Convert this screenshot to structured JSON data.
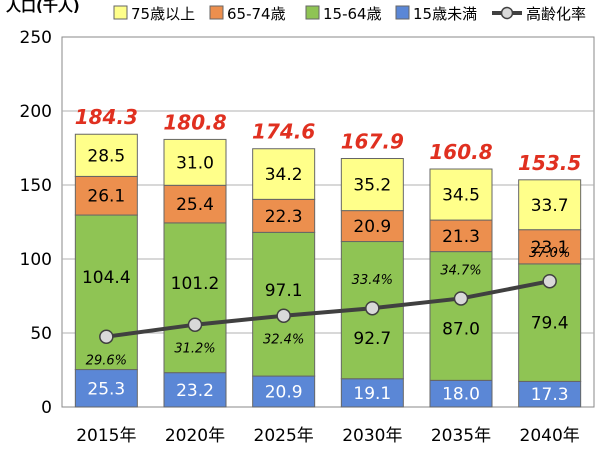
{
  "chart_data": {
    "type": "bar",
    "stacked": true,
    "ylabel": "人口(千人)",
    "ylim": [
      0,
      250
    ],
    "yticks": [
      0,
      50,
      100,
      150,
      200,
      250
    ],
    "grid": true,
    "categories": [
      "2015年",
      "2020年",
      "2025年",
      "2030年",
      "2035年",
      "2040年"
    ],
    "series": [
      {
        "name": "15歳未満",
        "color": "#5b87d6",
        "label_color": "#ffffff",
        "values": [
          25.3,
          23.2,
          20.9,
          19.1,
          18.0,
          17.3
        ]
      },
      {
        "name": "15-64歳",
        "color": "#8fc454",
        "label_color": "#000000",
        "values": [
          104.4,
          101.2,
          97.1,
          92.7,
          87.0,
          79.4
        ]
      },
      {
        "name": "65-74歳",
        "color": "#ec8f4e",
        "label_color": "#000000",
        "values": [
          26.1,
          25.4,
          22.3,
          20.9,
          21.3,
          23.1
        ]
      },
      {
        "name": "75歳以上",
        "color": "#ffff8a",
        "label_color": "#000000",
        "values": [
          28.5,
          31.0,
          34.2,
          35.2,
          34.5,
          33.7
        ]
      }
    ],
    "totals": [
      184.3,
      180.8,
      174.6,
      167.9,
      160.8,
      153.5
    ],
    "totals_color": "#e03020",
    "line_series": {
      "name": "高齢化率",
      "color": "#404040",
      "values_percent": [
        29.6,
        31.2,
        32.4,
        33.4,
        34.7,
        37.0
      ],
      "labels": [
        "29.6%",
        "31.2%",
        "32.4%",
        "33.4%",
        "34.7%",
        "37.0%"
      ]
    },
    "legend_order": [
      "75歳以上",
      "65-74歳",
      "15-64歳",
      "15歳未満",
      "高齢化率"
    ],
    "legend_position": "top"
  }
}
